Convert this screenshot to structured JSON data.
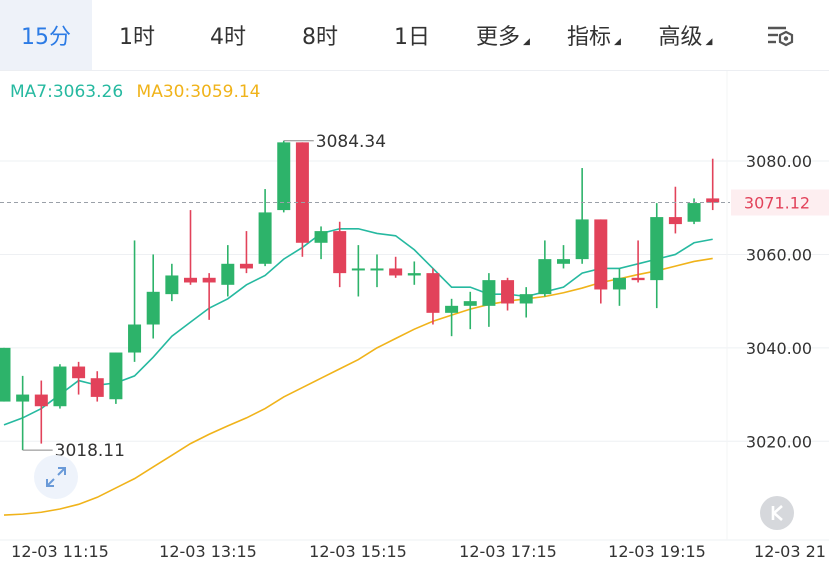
{
  "tabs": [
    {
      "label": "15分",
      "active": true,
      "dropdown": false
    },
    {
      "label": "1时",
      "active": false,
      "dropdown": false
    },
    {
      "label": "4时",
      "active": false,
      "dropdown": false
    },
    {
      "label": "8时",
      "active": false,
      "dropdown": false
    },
    {
      "label": "1日",
      "active": false,
      "dropdown": false
    },
    {
      "label": "更多",
      "active": false,
      "dropdown": true
    },
    {
      "label": "指标",
      "active": false,
      "dropdown": true
    },
    {
      "label": "高级",
      "active": false,
      "dropdown": true
    }
  ],
  "settings_icon": "chart-settings-icon",
  "ma": {
    "ma7_label": "MA7:3063.26",
    "ma30_label": "MA30:3059.14"
  },
  "colors": {
    "up": "#2db36a",
    "down": "#e2425a",
    "ma7": "#26b9a0",
    "ma30": "#f0b31a",
    "active_tab": "#2c7be5",
    "price_label": "#e2425a"
  },
  "chart_data": {
    "type": "candlestick",
    "interval": "15分",
    "ylim": [
      3001,
      3092
    ],
    "yticks": [
      3080,
      3060,
      3040,
      3020
    ],
    "ytick_labels": [
      "3080.00",
      "3060.00",
      "3040.00",
      "3020.00"
    ],
    "xtick_labels": [
      "12-03 11:15",
      "12-03 13:15",
      "12-03 15:15",
      "12-03 17:15",
      "12-03 19:15",
      "12-03 21"
    ],
    "current_price": "3071.12",
    "max_label": "3084.34",
    "min_label": "3018.11",
    "candles": [
      {
        "o": 3028.5,
        "c": 3040.0,
        "h": 3040.0,
        "l": 3028.5
      },
      {
        "o": 3028.5,
        "c": 3030.0,
        "h": 3034.0,
        "l": 3018.11
      },
      {
        "o": 3030.0,
        "c": 3027.5,
        "h": 3033.0,
        "l": 3019.5
      },
      {
        "o": 3027.5,
        "c": 3036.0,
        "h": 3036.5,
        "l": 3027.0
      },
      {
        "o": 3036.0,
        "c": 3033.5,
        "h": 3037.0,
        "l": 3030.0
      },
      {
        "o": 3033.5,
        "c": 3029.5,
        "h": 3035.0,
        "l": 3028.5
      },
      {
        "o": 3029.0,
        "c": 3039.0,
        "h": 3039.0,
        "l": 3028.0
      },
      {
        "o": 3039.0,
        "c": 3045.0,
        "h": 3063.0,
        "l": 3037.0
      },
      {
        "o": 3045.0,
        "c": 3052.0,
        "h": 3060.0,
        "l": 3042.0
      },
      {
        "o": 3051.5,
        "c": 3055.5,
        "h": 3058.0,
        "l": 3050.0
      },
      {
        "o": 3055.0,
        "c": 3054.0,
        "h": 3069.5,
        "l": 3053.5
      },
      {
        "o": 3055.0,
        "c": 3054.0,
        "h": 3056.0,
        "l": 3046.0
      },
      {
        "o": 3053.5,
        "c": 3058.0,
        "h": 3062.0,
        "l": 3051.0
      },
      {
        "o": 3058.0,
        "c": 3057.0,
        "h": 3065.0,
        "l": 3056.0
      },
      {
        "o": 3058.0,
        "c": 3069.0,
        "h": 3074.0,
        "l": 3057.5
      },
      {
        "o": 3069.5,
        "c": 3084.0,
        "h": 3084.34,
        "l": 3069.0
      },
      {
        "o": 3084.0,
        "c": 3062.5,
        "h": 3084.0,
        "l": 3059.5
      },
      {
        "o": 3062.5,
        "c": 3065.0,
        "h": 3066.0,
        "l": 3059.0
      },
      {
        "o": 3065.0,
        "c": 3056.0,
        "h": 3067.0,
        "l": 3053.0
      },
      {
        "o": 3057.0,
        "c": 3057.0,
        "h": 3062.0,
        "l": 3051.0
      },
      {
        "o": 3057.0,
        "c": 3057.0,
        "h": 3060.0,
        "l": 3053.0
      },
      {
        "o": 3057.0,
        "c": 3055.5,
        "h": 3059.5,
        "l": 3055.0
      },
      {
        "o": 3055.5,
        "c": 3056.0,
        "h": 3058.5,
        "l": 3053.5
      },
      {
        "o": 3056.0,
        "c": 3047.5,
        "h": 3057.0,
        "l": 3045.0
      },
      {
        "o": 3047.5,
        "c": 3049.0,
        "h": 3050.5,
        "l": 3042.5
      },
      {
        "o": 3049.0,
        "c": 3050.0,
        "h": 3052.0,
        "l": 3044.0
      },
      {
        "o": 3049.0,
        "c": 3054.5,
        "h": 3056.0,
        "l": 3044.5
      },
      {
        "o": 3054.5,
        "c": 3049.5,
        "h": 3055.0,
        "l": 3048.0
      },
      {
        "o": 3049.5,
        "c": 3051.5,
        "h": 3053.0,
        "l": 3046.5
      },
      {
        "o": 3051.5,
        "c": 3059.0,
        "h": 3063.0,
        "l": 3051.0
      },
      {
        "o": 3058.0,
        "c": 3059.0,
        "h": 3062.0,
        "l": 3057.0
      },
      {
        "o": 3059.0,
        "c": 3067.5,
        "h": 3078.5,
        "l": 3058.0
      },
      {
        "o": 3067.5,
        "c": 3052.5,
        "h": 3067.5,
        "l": 3049.5
      },
      {
        "o": 3052.5,
        "c": 3055.0,
        "h": 3057.0,
        "l": 3049.0
      },
      {
        "o": 3055.0,
        "c": 3054.5,
        "h": 3063.0,
        "l": 3054.0
      },
      {
        "o": 3054.5,
        "c": 3068.0,
        "h": 3071.0,
        "l": 3048.5
      },
      {
        "o": 3068.0,
        "c": 3066.5,
        "h": 3074.5,
        "l": 3064.5
      },
      {
        "o": 3067.0,
        "c": 3071.0,
        "h": 3072.0,
        "l": 3066.5
      },
      {
        "o": 3072.0,
        "c": 3071.12,
        "h": 3080.5,
        "l": 3069.5
      }
    ],
    "ma7": [
      3023.5,
      3025.0,
      3027.0,
      3030.0,
      3033.0,
      3032.0,
      3032.5,
      3034.0,
      3038.0,
      3042.5,
      3045.5,
      3048.5,
      3050.5,
      3053.5,
      3055.5,
      3059.0,
      3061.5,
      3064.5,
      3065.5,
      3065.5,
      3064.5,
      3064.0,
      3061.0,
      3057.0,
      3053.0,
      3053.0,
      3051.5,
      3051.5,
      3051.0,
      3052.0,
      3053.0,
      3056.0,
      3057.0,
      3057.0,
      3058.0,
      3059.0,
      3060.0,
      3062.5,
      3063.26
    ],
    "ma30": [
      3004.2,
      3004.4,
      3004.8,
      3005.5,
      3006.5,
      3008.0,
      3010.0,
      3012.0,
      3014.5,
      3017.0,
      3019.5,
      3021.5,
      3023.3,
      3025.0,
      3027.0,
      3029.5,
      3031.5,
      3033.5,
      3035.5,
      3037.5,
      3040.0,
      3042.0,
      3044.0,
      3045.7,
      3047.0,
      3048.3,
      3049.3,
      3050.0,
      3050.5,
      3051.0,
      3051.8,
      3052.8,
      3054.0,
      3054.8,
      3055.7,
      3056.5,
      3057.5,
      3058.5,
      3059.14
    ]
  }
}
